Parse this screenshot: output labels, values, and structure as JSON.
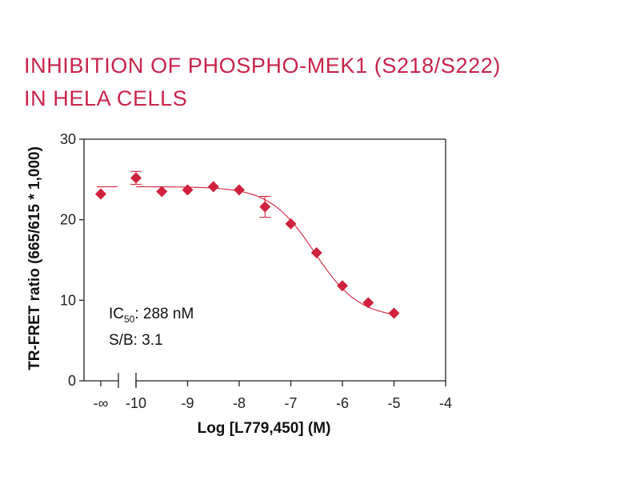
{
  "title_lines": [
    "INHIBITION OF PHOSPHO-MEK1 (S218/S222)",
    "IN HELA CELLS"
  ],
  "colors": {
    "title": "#c8234a",
    "series": "#d0223c",
    "axis": "#222222"
  },
  "chart_data": {
    "type": "scatter",
    "title": "INHIBITION OF PHOSPHO-MEK1 (S218/S222) IN HELA CELLS",
    "xlabel": "Log [L779,450] (M)",
    "ylabel": "TR-FRET ratio (665/615 * 1,000)",
    "xlim": [
      -10,
      -4
    ],
    "ylim": [
      0,
      30
    ],
    "x_ticks": [
      -10,
      -9,
      -8,
      -7,
      -6,
      -5,
      -4
    ],
    "x_tick_labels": [
      "-10",
      "-9",
      "-8",
      "-7",
      "-6",
      "-5",
      "-4"
    ],
    "zero_conc_tick_label": "-∞",
    "y_ticks": [
      0,
      10,
      20,
      30
    ],
    "y_tick_labels": [
      "0",
      "10",
      "20",
      "30"
    ],
    "grid": false,
    "zero_conc_point": {
      "y": 23.2,
      "err": 0
    },
    "series": [
      {
        "name": "L779,450",
        "marker": "diamond",
        "points": [
          {
            "x": -10.0,
            "y": 25.2,
            "err": 0.8
          },
          {
            "x": -9.5,
            "y": 23.5,
            "err": 0
          },
          {
            "x": -9.0,
            "y": 23.7,
            "err": 0
          },
          {
            "x": -8.5,
            "y": 24.1,
            "err": 0
          },
          {
            "x": -8.0,
            "y": 23.7,
            "err": 0
          },
          {
            "x": -7.5,
            "y": 21.6,
            "err": 1.3
          },
          {
            "x": -7.0,
            "y": 19.5,
            "err": 0
          },
          {
            "x": -6.5,
            "y": 15.9,
            "err": 0
          },
          {
            "x": -6.0,
            "y": 11.8,
            "err": 0
          },
          {
            "x": -5.5,
            "y": 9.7,
            "err": 0
          },
          {
            "x": -5.0,
            "y": 8.4,
            "err": 0
          }
        ]
      }
    ],
    "fit": {
      "model": "4PL",
      "top": 24.1,
      "bottom": 7.8,
      "logIC50": -6.54,
      "hill": 1.0,
      "x_start": -10.0,
      "x_end": -5.0
    },
    "zero_conc_fit_y": 24.1,
    "annotations": {
      "ic50_prefix": "IC",
      "ic50_sub": "50",
      "ic50_value": ": 288 nM",
      "sb": "S/B: 3.1"
    }
  }
}
